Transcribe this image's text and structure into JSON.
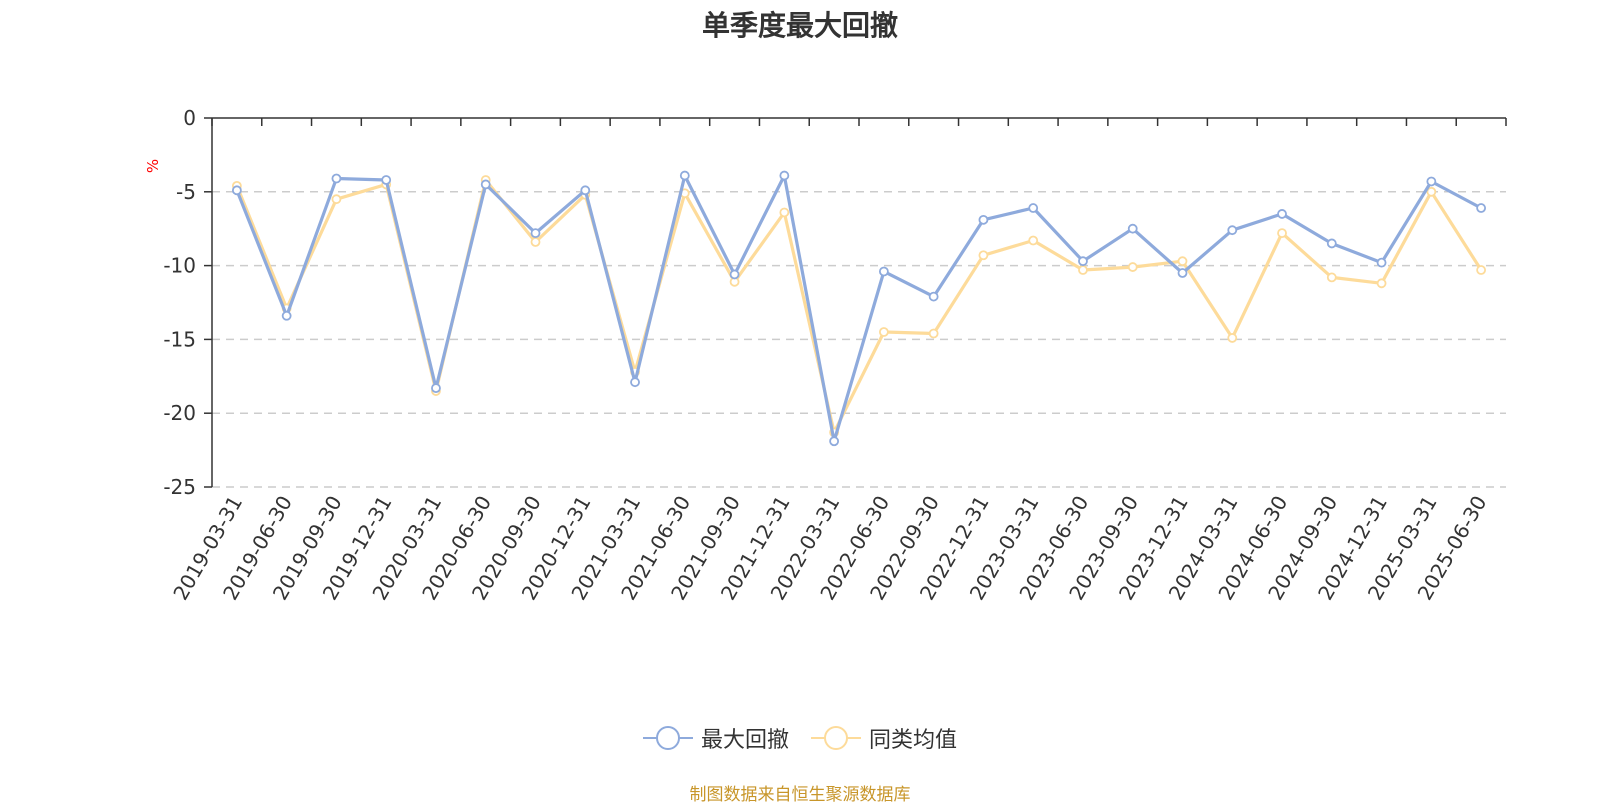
{
  "chart_data": {
    "type": "line",
    "title": "单季度最大回撤",
    "ylabel": "%",
    "ylim": [
      -25,
      0
    ],
    "yticks": [
      0,
      -5,
      -10,
      -15,
      -20,
      -25
    ],
    "grid": true,
    "legend_position": "bottom-center",
    "categories": [
      "2019-03-31",
      "2019-06-30",
      "2019-09-30",
      "2019-12-31",
      "2020-03-31",
      "2020-06-30",
      "2020-09-30",
      "2020-12-31",
      "2021-03-31",
      "2021-06-30",
      "2021-09-30",
      "2021-12-31",
      "2022-03-31",
      "2022-06-30",
      "2022-09-30",
      "2022-12-31",
      "2023-03-31",
      "2023-06-30",
      "2023-09-30",
      "2023-12-31",
      "2024-03-31",
      "2024-06-30",
      "2024-09-30",
      "2024-12-31",
      "2025-03-31",
      "2025-06-30"
    ],
    "series": [
      {
        "name": "最大回撤",
        "color": "#8eaadc",
        "values": [
          -4.9,
          -13.4,
          -4.1,
          -4.2,
          -18.3,
          -4.5,
          -7.8,
          -4.9,
          -17.9,
          -3.9,
          -10.6,
          -3.9,
          -21.9,
          -10.4,
          -12.1,
          -6.9,
          -6.1,
          -9.7,
          -7.5,
          -10.5,
          -7.6,
          -6.5,
          -8.5,
          -9.8,
          -4.3,
          -6.1
        ]
      },
      {
        "name": "同类均值",
        "color": "#fddb9a",
        "values": [
          -4.6,
          -12.9,
          -5.5,
          -4.5,
          -18.5,
          -4.2,
          -8.4,
          -5.2,
          -17.2,
          -5.1,
          -11.1,
          -6.4,
          -21.3,
          -14.5,
          -14.6,
          -9.3,
          -8.3,
          -10.3,
          -10.1,
          -9.7,
          -14.9,
          -7.8,
          -10.8,
          -11.2,
          -5.0,
          -10.3
        ]
      }
    ]
  },
  "footer": {
    "source": "制图数据来自恒生聚源数据库"
  }
}
